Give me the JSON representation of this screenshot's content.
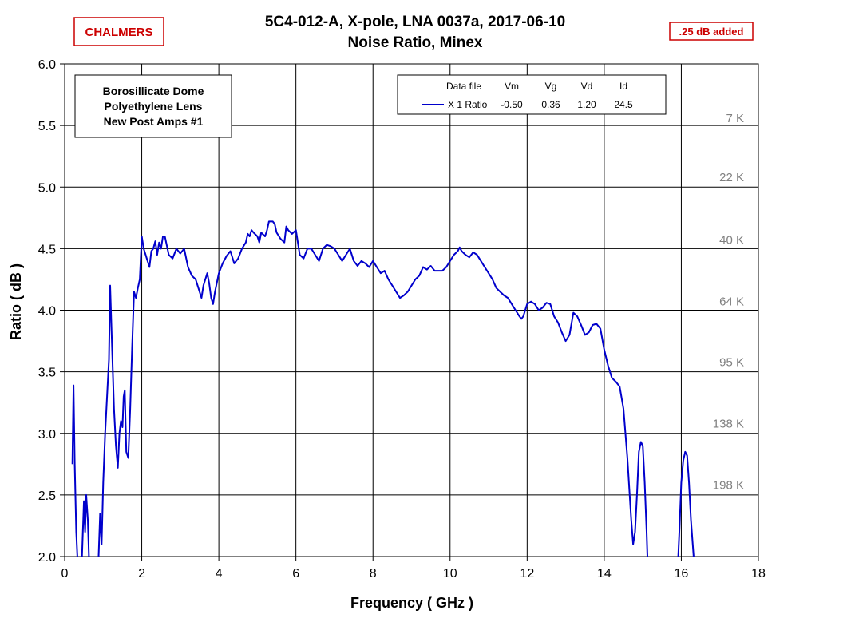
{
  "brand": {
    "logo_text": "CHALMERS",
    "color": "#cc0000"
  },
  "badge": {
    "text": ".25 dB added",
    "color": "#cc0000"
  },
  "chart_data": {
    "type": "line",
    "title": "5C4-012-A,  X-pole,  LNA 0037a,  2017-06-10",
    "subtitle": "Noise Ratio,  Minex",
    "xlabel": "Frequency  ( GHz )",
    "ylabel": "Ratio  ( dB )",
    "xlim": [
      0,
      18
    ],
    "ylim": [
      2.0,
      6.0
    ],
    "xticks": [
      "0",
      "2",
      "4",
      "6",
      "8",
      "10",
      "12",
      "14",
      "16",
      "18"
    ],
    "yticks": [
      "2.0",
      "2.5",
      "3.0",
      "3.5",
      "4.0",
      "4.5",
      "5.0",
      "5.5",
      "6.0"
    ],
    "grid": true,
    "legend_position": "top-center",
    "legend": {
      "headers": [
        "Data file",
        "Vm",
        "Vg",
        "Vd",
        "Id"
      ],
      "rows": [
        {
          "label": "X 1 Ratio",
          "vm": "-0.50",
          "vg": "0.36",
          "vd": "1.20",
          "id": "24.5",
          "color": "#0000cc"
        }
      ]
    },
    "annotation_box": [
      "Borosillicate Dome",
      "Polyethylene Lens",
      "New Post Amps #1"
    ],
    "temperature_labels": [
      {
        "text": "7 K",
        "y": 5.56
      },
      {
        "text": "22 K",
        "y": 5.08
      },
      {
        "text": "40 K",
        "y": 4.57
      },
      {
        "text": "64 K",
        "y": 4.07
      },
      {
        "text": "95 K",
        "y": 3.58
      },
      {
        "text": "138 K",
        "y": 3.08
      },
      {
        "text": "198 K",
        "y": 2.58
      }
    ],
    "series": [
      {
        "name": "X 1 Ratio",
        "color": "#0000cc",
        "segments": [
          [
            [
              0.2,
              2.75
            ],
            [
              0.23,
              3.39
            ],
            [
              0.26,
              2.75
            ],
            [
              0.3,
              2.2
            ],
            [
              0.33,
              2.0
            ]
          ],
          [
            [
              0.45,
              2.0
            ],
            [
              0.5,
              2.45
            ],
            [
              0.53,
              2.2
            ],
            [
              0.56,
              2.5
            ],
            [
              0.6,
              2.3
            ],
            [
              0.63,
              2.0
            ]
          ],
          [
            [
              0.88,
              2.0
            ],
            [
              0.92,
              2.35
            ],
            [
              0.96,
              2.1
            ],
            [
              1.0,
              2.6
            ],
            [
              1.05,
              3.0
            ],
            [
              1.1,
              3.3
            ],
            [
              1.15,
              3.6
            ],
            [
              1.18,
              4.2
            ],
            [
              1.22,
              3.8
            ],
            [
              1.28,
              3.2
            ],
            [
              1.33,
              2.9
            ],
            [
              1.38,
              2.72
            ],
            [
              1.42,
              3.0
            ],
            [
              1.46,
              3.1
            ],
            [
              1.5,
              3.05
            ],
            [
              1.53,
              3.3
            ],
            [
              1.56,
              3.35
            ],
            [
              1.6,
              2.85
            ],
            [
              1.65,
              2.8
            ],
            [
              1.7,
              3.2
            ],
            [
              1.75,
              3.7
            ],
            [
              1.8,
              4.15
            ],
            [
              1.85,
              4.1
            ],
            [
              1.9,
              4.18
            ],
            [
              1.95,
              4.25
            ],
            [
              2.0,
              4.6
            ],
            [
              2.05,
              4.5
            ],
            [
              2.1,
              4.45
            ],
            [
              2.15,
              4.4
            ],
            [
              2.2,
              4.35
            ],
            [
              2.25,
              4.48
            ],
            [
              2.3,
              4.5
            ],
            [
              2.35,
              4.56
            ],
            [
              2.4,
              4.45
            ],
            [
              2.45,
              4.55
            ],
            [
              2.5,
              4.5
            ],
            [
              2.55,
              4.6
            ],
            [
              2.6,
              4.6
            ],
            [
              2.7,
              4.45
            ],
            [
              2.8,
              4.42
            ],
            [
              2.9,
              4.5
            ],
            [
              3.0,
              4.46
            ],
            [
              3.1,
              4.5
            ],
            [
              3.2,
              4.35
            ],
            [
              3.3,
              4.28
            ],
            [
              3.4,
              4.25
            ],
            [
              3.5,
              4.15
            ],
            [
              3.55,
              4.1
            ],
            [
              3.6,
              4.2
            ],
            [
              3.7,
              4.3
            ],
            [
              3.75,
              4.22
            ],
            [
              3.8,
              4.1
            ],
            [
              3.85,
              4.05
            ],
            [
              3.9,
              4.15
            ],
            [
              4.0,
              4.3
            ],
            [
              4.1,
              4.38
            ],
            [
              4.2,
              4.44
            ],
            [
              4.3,
              4.48
            ],
            [
              4.4,
              4.38
            ],
            [
              4.5,
              4.42
            ],
            [
              4.6,
              4.5
            ],
            [
              4.7,
              4.55
            ],
            [
              4.75,
              4.62
            ],
            [
              4.8,
              4.6
            ],
            [
              4.85,
              4.65
            ],
            [
              4.9,
              4.63
            ],
            [
              5.0,
              4.6
            ],
            [
              5.05,
              4.55
            ],
            [
              5.1,
              4.63
            ],
            [
              5.2,
              4.6
            ],
            [
              5.25,
              4.65
            ],
            [
              5.3,
              4.72
            ],
            [
              5.4,
              4.72
            ],
            [
              5.45,
              4.7
            ],
            [
              5.5,
              4.63
            ],
            [
              5.6,
              4.58
            ],
            [
              5.7,
              4.55
            ],
            [
              5.75,
              4.68
            ],
            [
              5.8,
              4.65
            ],
            [
              5.9,
              4.62
            ],
            [
              6.0,
              4.65
            ],
            [
              6.05,
              4.55
            ],
            [
              6.1,
              4.45
            ],
            [
              6.2,
              4.42
            ],
            [
              6.3,
              4.5
            ],
            [
              6.4,
              4.5
            ],
            [
              6.5,
              4.45
            ],
            [
              6.6,
              4.4
            ],
            [
              6.7,
              4.5
            ],
            [
              6.8,
              4.53
            ],
            [
              6.9,
              4.52
            ],
            [
              7.0,
              4.5
            ],
            [
              7.1,
              4.45
            ],
            [
              7.2,
              4.4
            ],
            [
              7.3,
              4.45
            ],
            [
              7.4,
              4.5
            ],
            [
              7.5,
              4.4
            ],
            [
              7.6,
              4.36
            ],
            [
              7.7,
              4.4
            ],
            [
              7.8,
              4.38
            ],
            [
              7.9,
              4.35
            ],
            [
              8.0,
              4.4
            ],
            [
              8.1,
              4.35
            ],
            [
              8.2,
              4.3
            ],
            [
              8.3,
              4.32
            ],
            [
              8.4,
              4.25
            ],
            [
              8.5,
              4.2
            ],
            [
              8.6,
              4.15
            ],
            [
              8.7,
              4.1
            ],
            [
              8.8,
              4.12
            ],
            [
              8.9,
              4.15
            ],
            [
              9.0,
              4.2
            ],
            [
              9.1,
              4.25
            ],
            [
              9.2,
              4.28
            ],
            [
              9.3,
              4.35
            ],
            [
              9.4,
              4.33
            ],
            [
              9.5,
              4.36
            ],
            [
              9.6,
              4.32
            ],
            [
              9.7,
              4.32
            ],
            [
              9.8,
              4.32
            ],
            [
              9.9,
              4.35
            ],
            [
              10.0,
              4.4
            ],
            [
              10.1,
              4.45
            ],
            [
              10.2,
              4.48
            ],
            [
              10.25,
              4.51
            ],
            [
              10.3,
              4.48
            ],
            [
              10.4,
              4.45
            ],
            [
              10.5,
              4.43
            ],
            [
              10.6,
              4.47
            ],
            [
              10.7,
              4.45
            ],
            [
              10.8,
              4.4
            ],
            [
              10.9,
              4.35
            ],
            [
              11.0,
              4.3
            ],
            [
              11.1,
              4.25
            ],
            [
              11.2,
              4.18
            ],
            [
              11.3,
              4.15
            ],
            [
              11.4,
              4.12
            ],
            [
              11.5,
              4.1
            ],
            [
              11.6,
              4.05
            ],
            [
              11.7,
              4.0
            ],
            [
              11.8,
              3.95
            ],
            [
              11.85,
              3.93
            ],
            [
              11.9,
              3.95
            ],
            [
              12.0,
              4.05
            ],
            [
              12.1,
              4.07
            ],
            [
              12.2,
              4.05
            ],
            [
              12.3,
              4.0
            ],
            [
              12.4,
              4.02
            ],
            [
              12.5,
              4.06
            ],
            [
              12.6,
              4.05
            ],
            [
              12.7,
              3.95
            ],
            [
              12.8,
              3.9
            ],
            [
              12.9,
              3.82
            ],
            [
              13.0,
              3.75
            ],
            [
              13.1,
              3.8
            ],
            [
              13.2,
              3.98
            ],
            [
              13.3,
              3.95
            ],
            [
              13.4,
              3.88
            ],
            [
              13.5,
              3.8
            ],
            [
              13.6,
              3.82
            ],
            [
              13.7,
              3.88
            ],
            [
              13.8,
              3.89
            ],
            [
              13.9,
              3.85
            ],
            [
              14.0,
              3.68
            ],
            [
              14.1,
              3.55
            ],
            [
              14.2,
              3.45
            ],
            [
              14.3,
              3.42
            ],
            [
              14.4,
              3.38
            ],
            [
              14.5,
              3.2
            ],
            [
              14.6,
              2.8
            ],
            [
              14.7,
              2.3
            ],
            [
              14.75,
              2.1
            ],
            [
              14.8,
              2.2
            ],
            [
              14.85,
              2.5
            ],
            [
              14.9,
              2.85
            ],
            [
              14.95,
              2.93
            ],
            [
              15.0,
              2.9
            ],
            [
              15.05,
              2.6
            ],
            [
              15.1,
              2.2
            ],
            [
              15.12,
              2.0
            ]
          ],
          [
            [
              15.92,
              2.0
            ],
            [
              15.95,
              2.2
            ],
            [
              16.0,
              2.6
            ],
            [
              16.05,
              2.78
            ],
            [
              16.1,
              2.85
            ],
            [
              16.15,
              2.82
            ],
            [
              16.2,
              2.6
            ],
            [
              16.25,
              2.3
            ],
            [
              16.32,
              2.0
            ]
          ]
        ]
      }
    ]
  }
}
